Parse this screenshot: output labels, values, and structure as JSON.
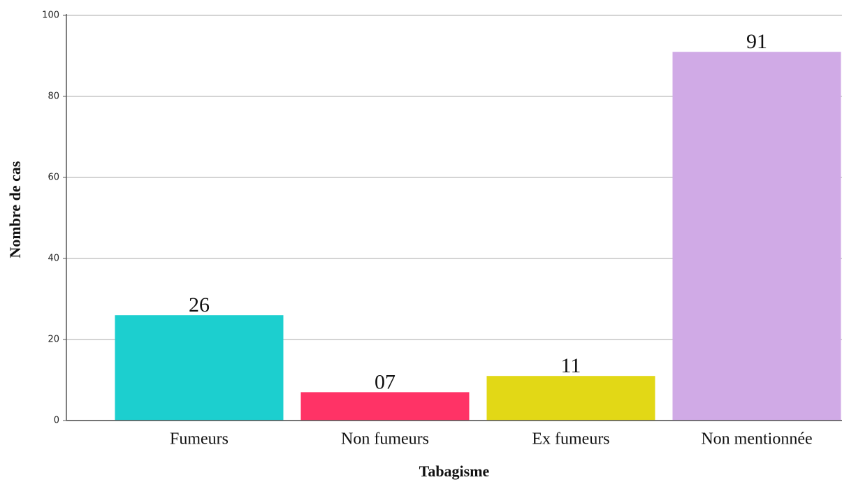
{
  "chart_data": {
    "type": "bar",
    "x_label": "Tabagisme",
    "y_label": "Nombre de cas",
    "categories": [
      "Fumeurs",
      "Non fumeurs",
      "Ex fumeurs",
      "Non mentionnée"
    ],
    "values": [
      26,
      7,
      11,
      91
    ],
    "value_labels": [
      "26",
      "07",
      "11",
      "91"
    ],
    "colors": [
      "#1ccfcf",
      "#ff3366",
      "#e2d816",
      "#d0aae6"
    ],
    "ylim": [
      0,
      100
    ],
    "yticks": [
      0,
      20,
      40,
      60,
      80,
      100
    ],
    "grid": true
  }
}
